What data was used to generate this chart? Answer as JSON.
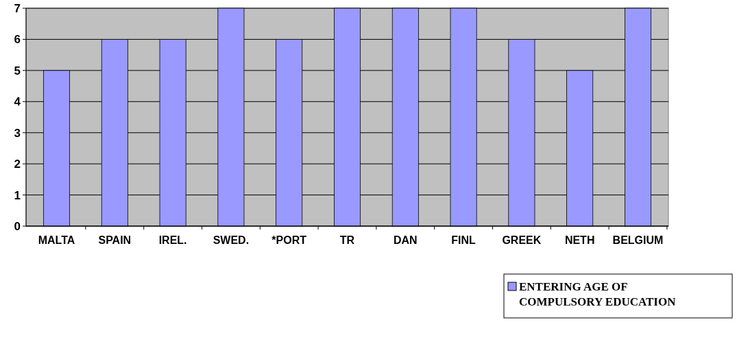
{
  "chart_data": {
    "type": "bar",
    "categories": [
      "MALTA",
      "SPAIN",
      "IREL.",
      "SWED.",
      "*PORT",
      "TR",
      "DAN",
      "FINL",
      "GREEK",
      "NETH",
      "BELGIUM"
    ],
    "series": [
      {
        "name": "ENTERING AGE OF COMPULSORY EDUCATION",
        "color": "#9999ff",
        "values": [
          5,
          6,
          6,
          7,
          6,
          7,
          7,
          7,
          6,
          5,
          7
        ]
      }
    ],
    "ylim": [
      0,
      7
    ],
    "yticks": [
      0,
      1,
      2,
      3,
      4,
      5,
      6,
      7
    ],
    "grid": "y",
    "legend": "bottom right"
  }
}
